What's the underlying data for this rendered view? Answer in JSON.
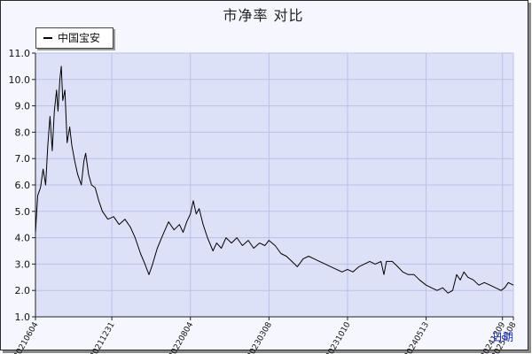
{
  "colors": {
    "plot_bg": "#dde1f8",
    "grid": "#b9c1e6",
    "line": "#000000",
    "axis_name": "#1a33cc"
  },
  "chart_data": {
    "type": "line",
    "title": "市净率  对比",
    "xlabel": "日期",
    "ylabel": "",
    "ylim": [
      1.0,
      11.0
    ],
    "yticks": [
      1.0,
      2.0,
      3.0,
      4.0,
      5.0,
      6.0,
      7.0,
      8.0,
      9.0,
      10.0,
      11.0
    ],
    "ytick_labels": [
      "1.0",
      "2.0",
      "3.0",
      "4.0",
      "5.0",
      "6.0",
      "7.0",
      "8.0",
      "9.0",
      "10.0",
      "11.0"
    ],
    "xlim": [
      "2021-06-04",
      "2025-01-08"
    ],
    "xticks": [
      "2021-06-04",
      "2021-12-31",
      "2022-08-04",
      "2023-03-08",
      "2023-10-10",
      "2024-05-13",
      "2024-12-09"
    ],
    "xtick_labels": [
      "20210604",
      "20211231",
      "20220804",
      "20230308",
      "20231010",
      "20240513",
      "20241209"
    ],
    "last_tick_label": "20250108",
    "grid": true,
    "legend": "top-left",
    "series": [
      {
        "name": "中国宝安",
        "points": [
          [
            "2021-06-04",
            4.2
          ],
          [
            "2021-06-10",
            5.6
          ],
          [
            "2021-06-18",
            5.9
          ],
          [
            "2021-06-25",
            6.6
          ],
          [
            "2021-07-02",
            6.0
          ],
          [
            "2021-07-08",
            7.5
          ],
          [
            "2021-07-14",
            8.6
          ],
          [
            "2021-07-20",
            7.3
          ],
          [
            "2021-07-26",
            8.8
          ],
          [
            "2021-08-01",
            9.6
          ],
          [
            "2021-08-05",
            8.8
          ],
          [
            "2021-08-10",
            10.0
          ],
          [
            "2021-08-14",
            10.5
          ],
          [
            "2021-08-18",
            9.2
          ],
          [
            "2021-08-24",
            9.6
          ],
          [
            "2021-08-30",
            7.6
          ],
          [
            "2021-09-06",
            8.2
          ],
          [
            "2021-09-12",
            7.5
          ],
          [
            "2021-09-20",
            6.9
          ],
          [
            "2021-09-28",
            6.4
          ],
          [
            "2021-10-08",
            6.0
          ],
          [
            "2021-10-15",
            6.9
          ],
          [
            "2021-10-20",
            7.2
          ],
          [
            "2021-10-28",
            6.4
          ],
          [
            "2021-11-05",
            6.0
          ],
          [
            "2021-11-15",
            5.9
          ],
          [
            "2021-11-25",
            5.4
          ],
          [
            "2021-12-05",
            5.0
          ],
          [
            "2021-12-20",
            4.7
          ],
          [
            "2022-01-05",
            4.8
          ],
          [
            "2022-01-20",
            4.5
          ],
          [
            "2022-02-05",
            4.7
          ],
          [
            "2022-02-20",
            4.4
          ],
          [
            "2022-03-05",
            4.0
          ],
          [
            "2022-03-20",
            3.4
          ],
          [
            "2022-04-01",
            3.0
          ],
          [
            "2022-04-12",
            2.6
          ],
          [
            "2022-04-22",
            3.0
          ],
          [
            "2022-05-05",
            3.6
          ],
          [
            "2022-05-20",
            4.1
          ],
          [
            "2022-06-05",
            4.6
          ],
          [
            "2022-06-20",
            4.3
          ],
          [
            "2022-07-05",
            4.5
          ],
          [
            "2022-07-15",
            4.2
          ],
          [
            "2022-07-25",
            4.6
          ],
          [
            "2022-08-04",
            4.9
          ],
          [
            "2022-08-12",
            5.4
          ],
          [
            "2022-08-20",
            4.9
          ],
          [
            "2022-08-28",
            5.1
          ],
          [
            "2022-09-08",
            4.5
          ],
          [
            "2022-09-20",
            4.0
          ],
          [
            "2022-10-05",
            3.5
          ],
          [
            "2022-10-15",
            3.8
          ],
          [
            "2022-10-28",
            3.6
          ],
          [
            "2022-11-10",
            4.0
          ],
          [
            "2022-11-25",
            3.8
          ],
          [
            "2022-12-10",
            4.0
          ],
          [
            "2022-12-25",
            3.7
          ],
          [
            "2023-01-10",
            3.9
          ],
          [
            "2023-01-25",
            3.6
          ],
          [
            "2023-02-10",
            3.8
          ],
          [
            "2023-02-25",
            3.7
          ],
          [
            "2023-03-08",
            3.9
          ],
          [
            "2023-03-25",
            3.7
          ],
          [
            "2023-04-10",
            3.4
          ],
          [
            "2023-04-25",
            3.3
          ],
          [
            "2023-05-10",
            3.1
          ],
          [
            "2023-05-25",
            2.9
          ],
          [
            "2023-06-10",
            3.2
          ],
          [
            "2023-06-25",
            3.3
          ],
          [
            "2023-07-10",
            3.2
          ],
          [
            "2023-07-25",
            3.1
          ],
          [
            "2023-08-10",
            3.0
          ],
          [
            "2023-08-25",
            2.9
          ],
          [
            "2023-09-10",
            2.8
          ],
          [
            "2023-09-25",
            2.7
          ],
          [
            "2023-10-10",
            2.8
          ],
          [
            "2023-10-25",
            2.7
          ],
          [
            "2023-11-10",
            2.9
          ],
          [
            "2023-11-25",
            3.0
          ],
          [
            "2023-12-10",
            3.1
          ],
          [
            "2023-12-25",
            3.0
          ],
          [
            "2024-01-10",
            3.1
          ],
          [
            "2024-01-18",
            2.6
          ],
          [
            "2024-01-25",
            3.1
          ],
          [
            "2024-02-10",
            3.1
          ],
          [
            "2024-02-25",
            2.9
          ],
          [
            "2024-03-10",
            2.7
          ],
          [
            "2024-03-25",
            2.6
          ],
          [
            "2024-04-10",
            2.6
          ],
          [
            "2024-04-25",
            2.4
          ],
          [
            "2024-05-13",
            2.2
          ],
          [
            "2024-05-28",
            2.1
          ],
          [
            "2024-06-12",
            2.0
          ],
          [
            "2024-06-28",
            2.1
          ],
          [
            "2024-07-12",
            1.9
          ],
          [
            "2024-07-25",
            2.0
          ],
          [
            "2024-08-05",
            2.6
          ],
          [
            "2024-08-15",
            2.4
          ],
          [
            "2024-08-25",
            2.7
          ],
          [
            "2024-09-05",
            2.5
          ],
          [
            "2024-09-20",
            2.4
          ],
          [
            "2024-10-05",
            2.2
          ],
          [
            "2024-10-20",
            2.3
          ],
          [
            "2024-11-05",
            2.2
          ],
          [
            "2024-11-20",
            2.1
          ],
          [
            "2024-12-05",
            2.0
          ],
          [
            "2024-12-15",
            2.1
          ],
          [
            "2024-12-25",
            2.3
          ],
          [
            "2025-01-08",
            2.2
          ]
        ]
      }
    ]
  }
}
